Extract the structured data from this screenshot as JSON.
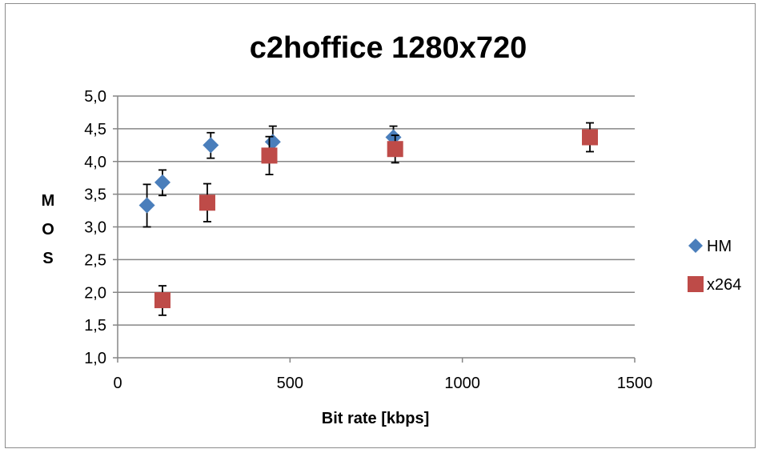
{
  "chart_data": {
    "type": "scatter",
    "title": "c2hoffice 1280x720",
    "xlabel": "Bit rate [kbps]",
    "ylabel": "MOS",
    "ylabel_letters": [
      "M",
      "O",
      "S"
    ],
    "xlim": [
      0,
      1500
    ],
    "ylim": [
      1.0,
      5.0
    ],
    "x_ticks": [
      "0",
      "500",
      "1000",
      "1500"
    ],
    "x_tick_values": [
      0,
      500,
      1000,
      1500
    ],
    "y_ticks": [
      "1,0",
      "1,5",
      "2,0",
      "2,5",
      "3,0",
      "3,5",
      "4,0",
      "4,5",
      "5,0"
    ],
    "y_tick_values": [
      1.0,
      1.5,
      2.0,
      2.5,
      3.0,
      3.5,
      4.0,
      4.5,
      5.0
    ],
    "grid": "horizontal",
    "legend_position": "right",
    "error_bars": true,
    "series": [
      {
        "name": "HM",
        "marker": "diamond",
        "color": "#4a7ebb",
        "points": [
          {
            "x": 85,
            "y": 3.33,
            "low": 3.0,
            "high": 3.65
          },
          {
            "x": 130,
            "y": 3.68,
            "low": 3.48,
            "high": 3.87
          },
          {
            "x": 270,
            "y": 4.25,
            "low": 4.05,
            "high": 4.44
          },
          {
            "x": 450,
            "y": 4.3,
            "low": 4.08,
            "high": 4.54
          },
          {
            "x": 800,
            "y": 4.37,
            "low": 4.15,
            "high": 4.54
          }
        ]
      },
      {
        "name": "x264",
        "marker": "square",
        "color": "#be4b48",
        "points": [
          {
            "x": 130,
            "y": 1.88,
            "low": 1.65,
            "high": 2.1
          },
          {
            "x": 260,
            "y": 3.37,
            "low": 3.08,
            "high": 3.66
          },
          {
            "x": 440,
            "y": 4.09,
            "low": 3.8,
            "high": 4.38
          },
          {
            "x": 805,
            "y": 4.19,
            "low": 3.98,
            "high": 4.4
          },
          {
            "x": 1370,
            "y": 4.37,
            "low": 4.15,
            "high": 4.59
          }
        ]
      }
    ]
  }
}
